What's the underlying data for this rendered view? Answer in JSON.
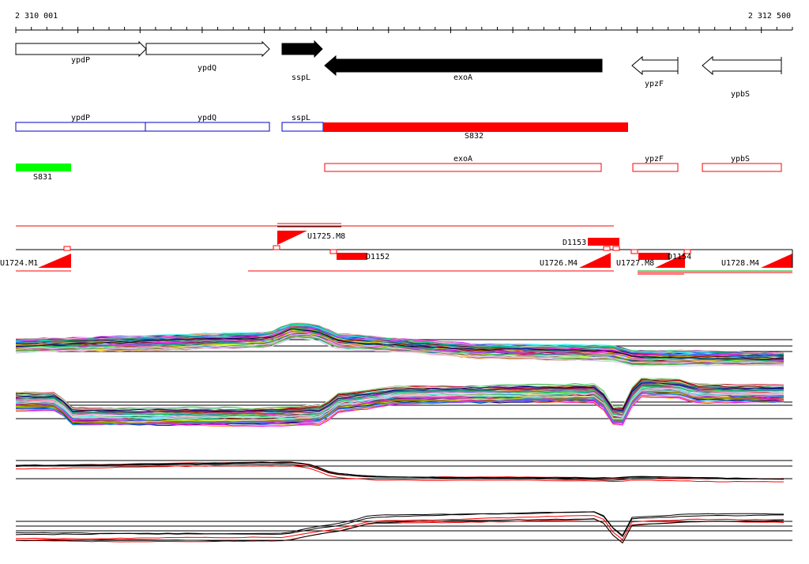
{
  "coordinates": {
    "start_label": "2 310 001",
    "end_label": "2 312 500",
    "start": 2310001,
    "end": 2312500
  },
  "colors": {
    "red": "#ff0000",
    "green": "#00ff00",
    "blue": "#0000cc",
    "black": "#000000",
    "grey": "#333333"
  },
  "genes": [
    {
      "name": "ypdP",
      "start": 2310001,
      "end": 2310420,
      "strand": "+",
      "fill": "#ffffff"
    },
    {
      "name": "ypdQ",
      "start": 2310422,
      "end": 2310858,
      "strand": "+",
      "fill": "#ffffff"
    },
    {
      "name": "sspL",
      "start": 2310858,
      "end": 2310988,
      "strand": "+",
      "fill": "#000000"
    },
    {
      "name": "exoA",
      "start": 2310991,
      "end": 2311875,
      "strand": "-",
      "fill": "#000000"
    },
    {
      "name": "ypzF",
      "start": 2311981,
      "end": 2312128,
      "strand": "-",
      "fill": "#ffffff"
    },
    {
      "name": "ypbS",
      "start": 2312204,
      "end": 2312460,
      "strand": "-",
      "fill": "#ffffff"
    }
  ],
  "sense_track": [
    {
      "name": "ypdP",
      "start": 2310001,
      "end": 2310420,
      "kind": "blue-box",
      "label_pos": "above"
    },
    {
      "name": "ypdQ",
      "start": 2310420,
      "end": 2310820,
      "kind": "blue-box",
      "label_pos": "above"
    },
    {
      "name": "sspL",
      "start": 2310858,
      "end": 2310988,
      "kind": "blue-box",
      "label_pos": "above"
    },
    {
      "name": "S832",
      "start": 2310988,
      "end": 2311975,
      "kind": "red-fill",
      "label_pos": "below"
    }
  ],
  "antisense_track": [
    {
      "name": "S831",
      "start": 2310001,
      "end": 2310178,
      "kind": "green-fill",
      "label_pos": "below"
    },
    {
      "name": "exoA",
      "start": 2310991,
      "end": 2311885,
      "kind": "red-box",
      "label_pos": "above"
    },
    {
      "name": "ypzF",
      "start": 2311983,
      "end": 2312128,
      "kind": "red-box",
      "label_pos": "above"
    },
    {
      "name": "ypbS",
      "start": 2312207,
      "end": 2312466,
      "kind": "red-box",
      "label_pos": "above"
    }
  ],
  "tu_labels": [
    {
      "name": "U1724.M1"
    },
    {
      "name": "U1725.M8"
    },
    {
      "name": "D1152"
    },
    {
      "name": "D1153"
    },
    {
      "name": "U1726.M4"
    },
    {
      "name": "U1727.M8"
    },
    {
      "name": "D1154"
    },
    {
      "name": "U1728.M4"
    }
  ]
}
